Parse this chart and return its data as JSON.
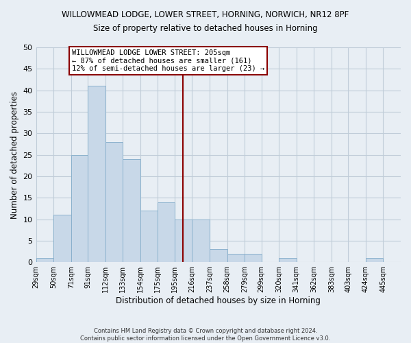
{
  "title": "WILLOWMEAD LODGE, LOWER STREET, HORNING, NORWICH, NR12 8PF",
  "subtitle": "Size of property relative to detached houses in Horning",
  "xlabel": "Distribution of detached houses by size in Horning",
  "ylabel": "Number of detached properties",
  "bar_color": "#c8d8e8",
  "bar_edge_color": "#8ab0cc",
  "bin_labels": [
    "29sqm",
    "50sqm",
    "71sqm",
    "91sqm",
    "112sqm",
    "133sqm",
    "154sqm",
    "175sqm",
    "195sqm",
    "216sqm",
    "237sqm",
    "258sqm",
    "279sqm",
    "299sqm",
    "320sqm",
    "341sqm",
    "362sqm",
    "383sqm",
    "403sqm",
    "424sqm",
    "445sqm"
  ],
  "bin_edges": [
    29,
    50,
    71,
    91,
    112,
    133,
    154,
    175,
    195,
    216,
    237,
    258,
    279,
    299,
    320,
    341,
    362,
    383,
    403,
    424,
    445
  ],
  "counts": [
    1,
    11,
    25,
    41,
    28,
    24,
    12,
    14,
    10,
    10,
    3,
    2,
    2,
    0,
    1,
    0,
    0,
    0,
    0,
    1
  ],
  "vline_x": 205,
  "vline_color": "#8b0000",
  "ylim": [
    0,
    50
  ],
  "yticks": [
    0,
    5,
    10,
    15,
    20,
    25,
    30,
    35,
    40,
    45,
    50
  ],
  "annotation_title": "WILLOWMEAD LODGE LOWER STREET: 205sqm",
  "annotation_line1": "← 87% of detached houses are smaller (161)",
  "annotation_line2": "12% of semi-detached houses are larger (23) →",
  "annotation_box_color": "#ffffff",
  "annotation_box_edge": "#8b0000",
  "footer_line1": "Contains HM Land Registry data © Crown copyright and database right 2024.",
  "footer_line2": "Contains public sector information licensed under the Open Government Licence v3.0.",
  "background_color": "#e8eef4",
  "plot_bg_color": "#e8eef4",
  "grid_color": "#c0ccd8"
}
